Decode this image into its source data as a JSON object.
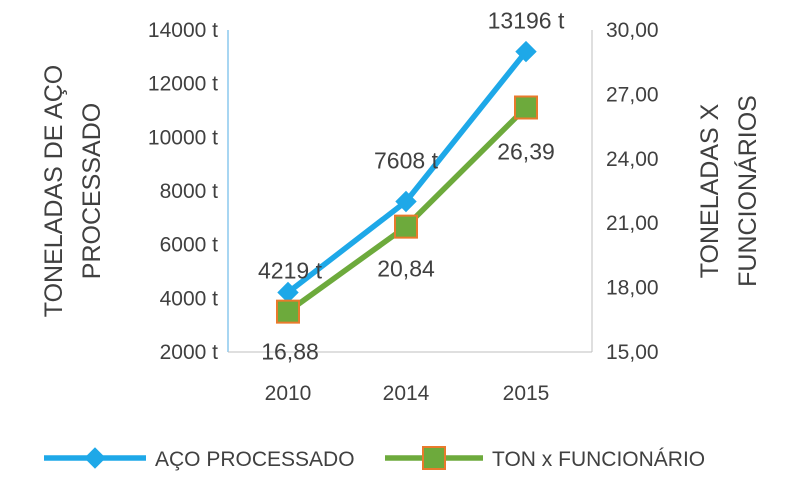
{
  "chart_data": {
    "type": "line",
    "categories": [
      "2010",
      "2014",
      "2015"
    ],
    "series": [
      {
        "name": "AÇO PROCESSADO",
        "axis": "left",
        "color": "#1EA8E8",
        "marker": "diamond",
        "values": [
          4219,
          7608,
          13196
        ],
        "labels": [
          "4219 t",
          "7608 t",
          "13196 t"
        ]
      },
      {
        "name": "TON x FUNCIONÁRIO",
        "axis": "right",
        "color": "#6DAA3C",
        "marker_fill": "#6DAA3C",
        "marker_edge": "#E97A2C",
        "marker": "square",
        "values": [
          16.88,
          20.84,
          26.39
        ],
        "labels": [
          "16,88",
          "20,84",
          "26,39"
        ]
      }
    ],
    "y_left": {
      "label": "TONELADAS DE AÇO PROCESSADO",
      "label_lines": [
        "TONELADAS DE AÇO",
        "PROCESSADO"
      ],
      "ylim": [
        2000,
        14000
      ],
      "ticks": [
        2000,
        4000,
        6000,
        8000,
        10000,
        12000,
        14000
      ],
      "tick_labels": [
        "2000 t",
        "4000 t",
        "6000 t",
        "8000 t",
        "10000 t",
        "12000 t",
        "14000 t"
      ]
    },
    "y_right": {
      "label": "TONELADAS X FUNCIONÁRIOS",
      "label_lines": [
        "TONELADAS X",
        "FUNCIONÁRIOS"
      ],
      "ylim": [
        15,
        30
      ],
      "ticks": [
        15,
        18,
        21,
        24,
        27,
        30
      ],
      "tick_labels": [
        "15,00",
        "18,00",
        "21,00",
        "24,00",
        "27,00",
        "30,00"
      ]
    },
    "xlabel": "",
    "grid": false,
    "legend_position": "bottom"
  }
}
